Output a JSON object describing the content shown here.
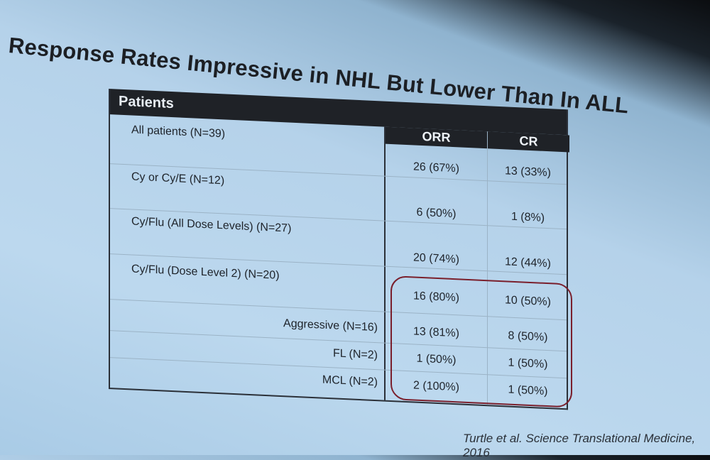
{
  "title": "Response Rates Impressive in NHL But Lower Than In ALL",
  "table": {
    "header": {
      "patients": "Patients",
      "orr": "ORR",
      "cr": "CR"
    },
    "rows": [
      {
        "label": "All patients (N=39)",
        "orr": "26 (67%)",
        "cr": "13  (33%)"
      },
      {
        "label": "Cy or Cy/E (N=12)",
        "orr": "6 (50%)",
        "cr": "1 (8%)"
      },
      {
        "label": "Cy/Flu (All Dose Levels) (N=27)",
        "orr": "20 (74%)",
        "cr": "12 (44%)"
      },
      {
        "label": "Cy/Flu (Dose Level 2) (N=20)",
        "orr": "16 (80%)",
        "cr": "10 (50%)"
      },
      {
        "label": "Aggressive (N=16)",
        "orr": "13 (81%)",
        "cr": "8 (50%)"
      },
      {
        "label": "FL (N=2)",
        "orr": "1 (50%)",
        "cr": "1 (50%)"
      },
      {
        "label": "MCL (N=2)",
        "orr": "2 (100%)",
        "cr": "1 (50%)"
      }
    ]
  },
  "highlight_color": "#7a1f2c",
  "citation": "Turtle et al. Science Translational Medicine, 2016"
}
